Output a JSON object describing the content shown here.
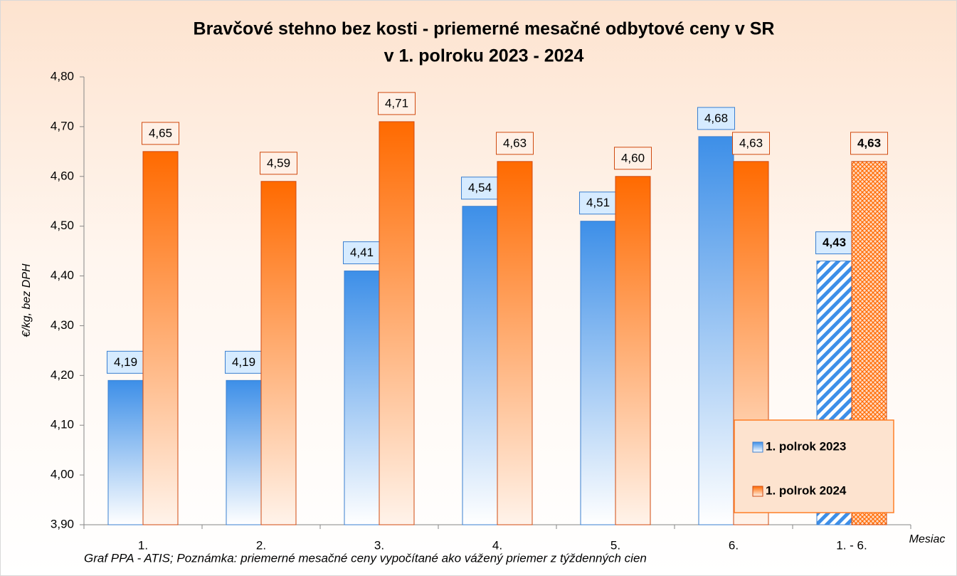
{
  "chart_data": {
    "type": "bar",
    "title": [
      "Bravčové stehno bez kosti - priemerné mesačné odbytové ceny v SR",
      "v 1. polroku 2023 - 2024"
    ],
    "y_label": "€/kg, bez DPH",
    "x_label": "Mesiac",
    "footnote": "Graf PPA - ATIS; Poznámka: priemerné mesačné ceny vypočítané ako vážený priemer z týždenných cien",
    "categories": [
      "1.",
      "2.",
      "3.",
      "4.",
      "5.",
      "6.",
      "1. - 6."
    ],
    "series": [
      {
        "name": "1. polrok 2023",
        "color": "#3d8fe8",
        "values": [
          4.19,
          4.19,
          4.41,
          4.54,
          4.51,
          4.68,
          4.43
        ],
        "value_labels": [
          "4,19",
          "4,19",
          "4,41",
          "4,54",
          "4,51",
          "4,68",
          "4,43"
        ]
      },
      {
        "name": "1. polrok 2024",
        "color": "#ff6a00",
        "values": [
          4.65,
          4.59,
          4.71,
          4.63,
          4.6,
          4.63,
          4.63
        ],
        "value_labels": [
          "4,65",
          "4,59",
          "4,71",
          "4,63",
          "4,60",
          "4,63",
          "4,63"
        ]
      }
    ],
    "ylim": [
      3.9,
      4.8
    ],
    "yticks": [
      {
        "value": 3.9,
        "label": "3,90"
      },
      {
        "value": 4.0,
        "label": "4,00"
      },
      {
        "value": 4.1,
        "label": "4,10"
      },
      {
        "value": 4.2,
        "label": "4,20"
      },
      {
        "value": 4.3,
        "label": "4,30"
      },
      {
        "value": 4.4,
        "label": "4,40"
      },
      {
        "value": 4.5,
        "label": "4,50"
      },
      {
        "value": 4.6,
        "label": "4,60"
      },
      {
        "value": 4.7,
        "label": "4,70"
      },
      {
        "value": 4.8,
        "label": "4,80"
      }
    ],
    "grid": false,
    "legend": "lower right"
  }
}
